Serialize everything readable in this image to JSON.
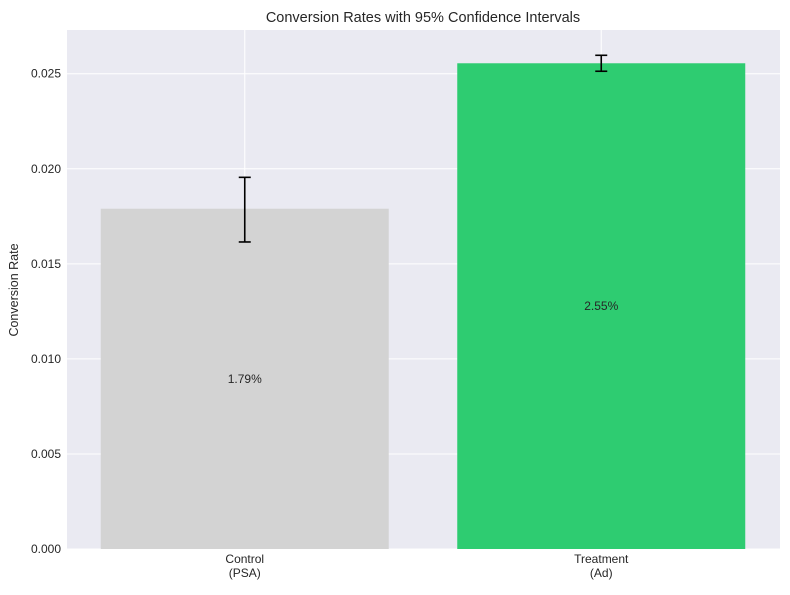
{
  "chart_data": {
    "type": "bar",
    "title": "Conversion Rates with 95% Confidence Intervals",
    "xlabel": "",
    "ylabel": "Conversion Rate",
    "ylim": [
      0,
      0.0273
    ],
    "yticks": [
      0.0,
      0.005,
      0.01,
      0.015,
      0.02,
      0.025
    ],
    "ytick_labels": [
      "0.000",
      "0.005",
      "0.010",
      "0.015",
      "0.020",
      "0.025"
    ],
    "grid": true,
    "categories": [
      "Control\n(PSA)",
      "Treatment\n(Ad)"
    ],
    "category_lines": [
      [
        "Control",
        "(PSA)"
      ],
      [
        "Treatment",
        "(Ad)"
      ]
    ],
    "values": [
      0.0179,
      0.02555
    ],
    "ci_low": [
      0.01615,
      0.02513
    ],
    "ci_high": [
      0.01955,
      0.02597
    ],
    "data_labels": [
      "1.79%",
      "2.55%"
    ],
    "colors": [
      "#d3d3d3",
      "#2ecc71"
    ],
    "background": "#eaeaf2"
  }
}
